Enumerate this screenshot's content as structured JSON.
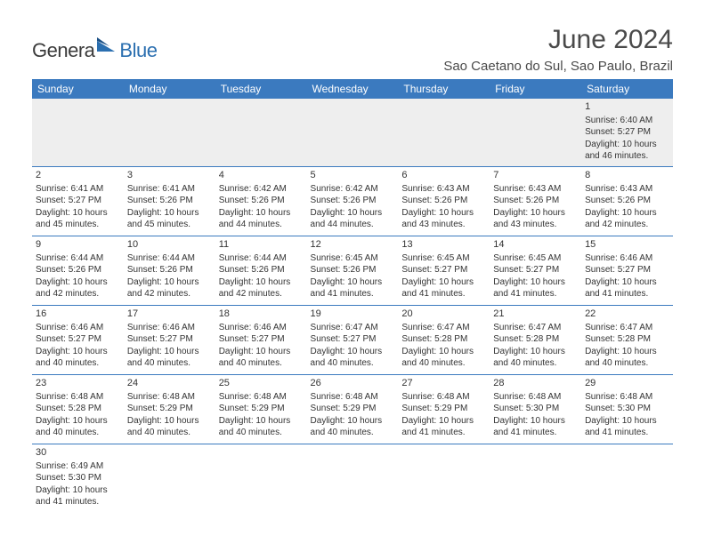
{
  "logo": {
    "text_main": "Genera",
    "text_sub": "Blue"
  },
  "title": "June 2024",
  "location": "Sao Caetano do Sul, Sao Paulo, Brazil",
  "colors": {
    "header_bg": "#3b7abf",
    "header_text": "#ffffff",
    "body_text": "#333333",
    "rule": "#3b7abf",
    "empty_bg": "#eeeeee",
    "logo_blue": "#2b6fb0"
  },
  "day_headers": [
    "Sunday",
    "Monday",
    "Tuesday",
    "Wednesday",
    "Thursday",
    "Friday",
    "Saturday"
  ],
  "weeks": [
    [
      null,
      null,
      null,
      null,
      null,
      null,
      {
        "n": "1",
        "sr": "Sunrise: 6:40 AM",
        "ss": "Sunset: 5:27 PM",
        "d1": "Daylight: 10 hours",
        "d2": "and 46 minutes."
      }
    ],
    [
      {
        "n": "2",
        "sr": "Sunrise: 6:41 AM",
        "ss": "Sunset: 5:27 PM",
        "d1": "Daylight: 10 hours",
        "d2": "and 45 minutes."
      },
      {
        "n": "3",
        "sr": "Sunrise: 6:41 AM",
        "ss": "Sunset: 5:26 PM",
        "d1": "Daylight: 10 hours",
        "d2": "and 45 minutes."
      },
      {
        "n": "4",
        "sr": "Sunrise: 6:42 AM",
        "ss": "Sunset: 5:26 PM",
        "d1": "Daylight: 10 hours",
        "d2": "and 44 minutes."
      },
      {
        "n": "5",
        "sr": "Sunrise: 6:42 AM",
        "ss": "Sunset: 5:26 PM",
        "d1": "Daylight: 10 hours",
        "d2": "and 44 minutes."
      },
      {
        "n": "6",
        "sr": "Sunrise: 6:43 AM",
        "ss": "Sunset: 5:26 PM",
        "d1": "Daylight: 10 hours",
        "d2": "and 43 minutes."
      },
      {
        "n": "7",
        "sr": "Sunrise: 6:43 AM",
        "ss": "Sunset: 5:26 PM",
        "d1": "Daylight: 10 hours",
        "d2": "and 43 minutes."
      },
      {
        "n": "8",
        "sr": "Sunrise: 6:43 AM",
        "ss": "Sunset: 5:26 PM",
        "d1": "Daylight: 10 hours",
        "d2": "and 42 minutes."
      }
    ],
    [
      {
        "n": "9",
        "sr": "Sunrise: 6:44 AM",
        "ss": "Sunset: 5:26 PM",
        "d1": "Daylight: 10 hours",
        "d2": "and 42 minutes."
      },
      {
        "n": "10",
        "sr": "Sunrise: 6:44 AM",
        "ss": "Sunset: 5:26 PM",
        "d1": "Daylight: 10 hours",
        "d2": "and 42 minutes."
      },
      {
        "n": "11",
        "sr": "Sunrise: 6:44 AM",
        "ss": "Sunset: 5:26 PM",
        "d1": "Daylight: 10 hours",
        "d2": "and 42 minutes."
      },
      {
        "n": "12",
        "sr": "Sunrise: 6:45 AM",
        "ss": "Sunset: 5:26 PM",
        "d1": "Daylight: 10 hours",
        "d2": "and 41 minutes."
      },
      {
        "n": "13",
        "sr": "Sunrise: 6:45 AM",
        "ss": "Sunset: 5:27 PM",
        "d1": "Daylight: 10 hours",
        "d2": "and 41 minutes."
      },
      {
        "n": "14",
        "sr": "Sunrise: 6:45 AM",
        "ss": "Sunset: 5:27 PM",
        "d1": "Daylight: 10 hours",
        "d2": "and 41 minutes."
      },
      {
        "n": "15",
        "sr": "Sunrise: 6:46 AM",
        "ss": "Sunset: 5:27 PM",
        "d1": "Daylight: 10 hours",
        "d2": "and 41 minutes."
      }
    ],
    [
      {
        "n": "16",
        "sr": "Sunrise: 6:46 AM",
        "ss": "Sunset: 5:27 PM",
        "d1": "Daylight: 10 hours",
        "d2": "and 40 minutes."
      },
      {
        "n": "17",
        "sr": "Sunrise: 6:46 AM",
        "ss": "Sunset: 5:27 PM",
        "d1": "Daylight: 10 hours",
        "d2": "and 40 minutes."
      },
      {
        "n": "18",
        "sr": "Sunrise: 6:46 AM",
        "ss": "Sunset: 5:27 PM",
        "d1": "Daylight: 10 hours",
        "d2": "and 40 minutes."
      },
      {
        "n": "19",
        "sr": "Sunrise: 6:47 AM",
        "ss": "Sunset: 5:27 PM",
        "d1": "Daylight: 10 hours",
        "d2": "and 40 minutes."
      },
      {
        "n": "20",
        "sr": "Sunrise: 6:47 AM",
        "ss": "Sunset: 5:28 PM",
        "d1": "Daylight: 10 hours",
        "d2": "and 40 minutes."
      },
      {
        "n": "21",
        "sr": "Sunrise: 6:47 AM",
        "ss": "Sunset: 5:28 PM",
        "d1": "Daylight: 10 hours",
        "d2": "and 40 minutes."
      },
      {
        "n": "22",
        "sr": "Sunrise: 6:47 AM",
        "ss": "Sunset: 5:28 PM",
        "d1": "Daylight: 10 hours",
        "d2": "and 40 minutes."
      }
    ],
    [
      {
        "n": "23",
        "sr": "Sunrise: 6:48 AM",
        "ss": "Sunset: 5:28 PM",
        "d1": "Daylight: 10 hours",
        "d2": "and 40 minutes."
      },
      {
        "n": "24",
        "sr": "Sunrise: 6:48 AM",
        "ss": "Sunset: 5:29 PM",
        "d1": "Daylight: 10 hours",
        "d2": "and 40 minutes."
      },
      {
        "n": "25",
        "sr": "Sunrise: 6:48 AM",
        "ss": "Sunset: 5:29 PM",
        "d1": "Daylight: 10 hours",
        "d2": "and 40 minutes."
      },
      {
        "n": "26",
        "sr": "Sunrise: 6:48 AM",
        "ss": "Sunset: 5:29 PM",
        "d1": "Daylight: 10 hours",
        "d2": "and 40 minutes."
      },
      {
        "n": "27",
        "sr": "Sunrise: 6:48 AM",
        "ss": "Sunset: 5:29 PM",
        "d1": "Daylight: 10 hours",
        "d2": "and 41 minutes."
      },
      {
        "n": "28",
        "sr": "Sunrise: 6:48 AM",
        "ss": "Sunset: 5:30 PM",
        "d1": "Daylight: 10 hours",
        "d2": "and 41 minutes."
      },
      {
        "n": "29",
        "sr": "Sunrise: 6:48 AM",
        "ss": "Sunset: 5:30 PM",
        "d1": "Daylight: 10 hours",
        "d2": "and 41 minutes."
      }
    ],
    [
      {
        "n": "30",
        "sr": "Sunrise: 6:49 AM",
        "ss": "Sunset: 5:30 PM",
        "d1": "Daylight: 10 hours",
        "d2": "and 41 minutes."
      },
      null,
      null,
      null,
      null,
      null,
      null
    ]
  ]
}
